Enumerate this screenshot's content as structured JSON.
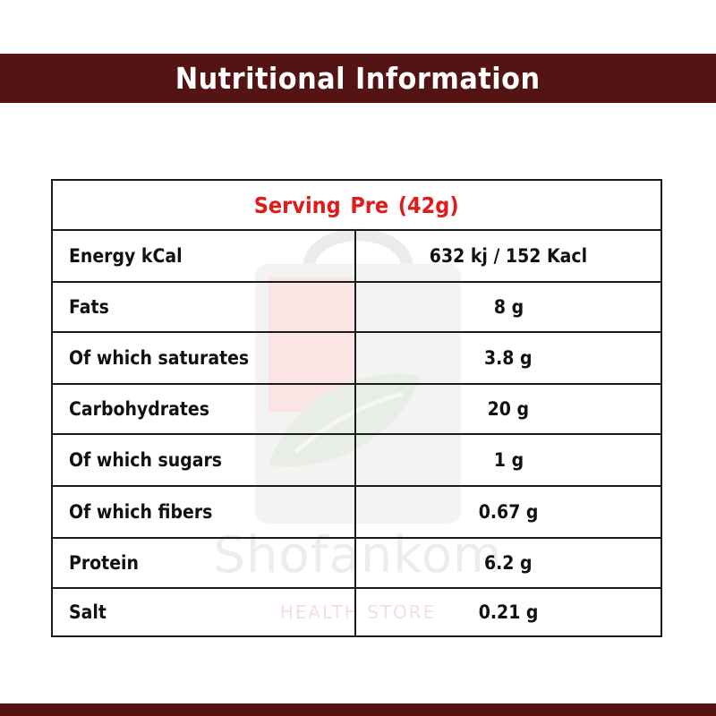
{
  "header": {
    "title": "Nutritional Information"
  },
  "watermark": {
    "brand": "Shofankom",
    "tagline": "HEALTH STORE"
  },
  "table": {
    "serving": "Serving Pre  (42g)",
    "rows": [
      {
        "label": "Energy kCal",
        "value": "632 kj / 152 Kacl"
      },
      {
        "label": "Fats",
        "value": "8 g"
      },
      {
        "label": "Of which saturates",
        "value": "3.8 g"
      },
      {
        "label": "Carbohydrates",
        "value": "20 g"
      },
      {
        "label": "Of which sugars",
        "value": "1 g"
      },
      {
        "label": "Of which fibers",
        "value": "0.67 g"
      },
      {
        "label": "Protein",
        "value": "6.2 g"
      },
      {
        "label": "Salt",
        "value": "0.21 g"
      }
    ]
  },
  "colors": {
    "bar": "#541414",
    "serving_text": "#e01b1b",
    "border": "#1a1a1a"
  }
}
